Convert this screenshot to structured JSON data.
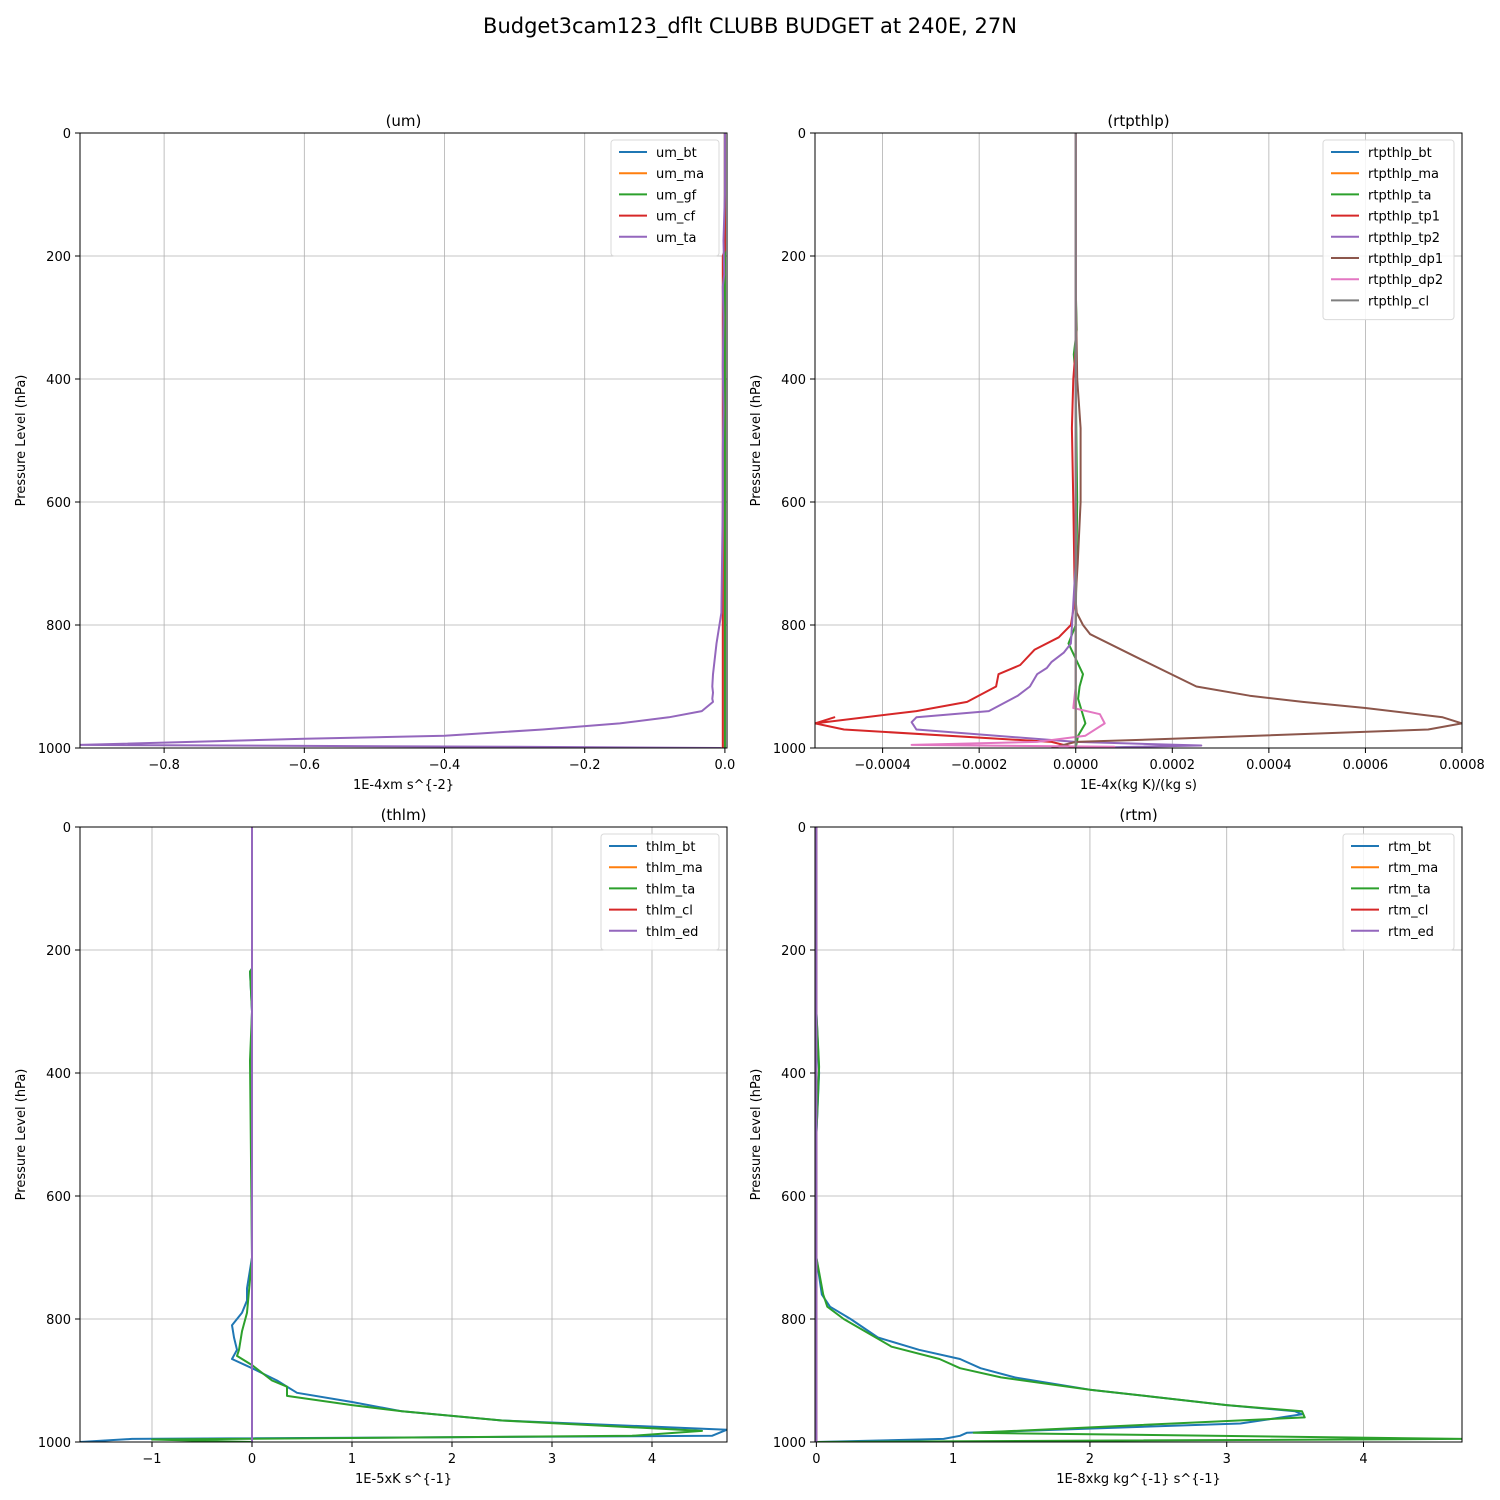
{
  "figure": {
    "suptitle": "Budget3cam123_dflt CLUBB BUDGET at 240E, 27N"
  },
  "chart_data": [
    {
      "type": "line",
      "title": "(um)",
      "xlabel": "1E-4xm s^{-2}",
      "ylabel": "Pressure Level (hPa)",
      "xlim": [
        -0.92,
        0.003
      ],
      "ylim": [
        1000,
        0
      ],
      "xticks": [
        -0.8,
        -0.6,
        -0.4,
        -0.2,
        0.0
      ],
      "xtick_labels": [
        "−0.8",
        "−0.6",
        "−0.4",
        "−0.2",
        "0.0"
      ],
      "yticks": [
        0,
        200,
        400,
        600,
        800,
        1000
      ],
      "ytick_labels": [
        "0",
        "200",
        "400",
        "600",
        "800",
        "1000"
      ],
      "grid": true,
      "legend": "top-right",
      "series": [
        {
          "name": "um_bt",
          "color": "#1f77b4",
          "x": [
            0,
            0,
            0,
            0,
            0
          ],
          "y": [
            0,
            250,
            500,
            800,
            1000
          ]
        },
        {
          "name": "um_ma",
          "color": "#ff7f0e",
          "x": [
            0,
            0,
            0,
            0
          ],
          "y": [
            0,
            400,
            800,
            1000
          ]
        },
        {
          "name": "um_gf",
          "color": "#2ca02c",
          "x": [
            0,
            0,
            0,
            0
          ],
          "y": [
            0,
            400,
            800,
            1000
          ]
        },
        {
          "name": "um_cf",
          "color": "#d62728",
          "x": [
            0,
            0,
            0,
            0,
            0.0,
            -0.003,
            -0.003
          ],
          "y": [
            0,
            160,
            170,
            180,
            190,
            200,
            1000
          ]
        },
        {
          "name": "um_ta",
          "color": "#9467bd",
          "x": [
            0.0,
            0.0,
            -0.002,
            -0.001,
            -0.003,
            -0.002,
            -0.003,
            -0.002,
            -0.003,
            -0.003,
            -0.005,
            -0.012,
            -0.017,
            -0.018,
            -0.017,
            -0.018,
            -0.017,
            -0.033,
            -0.08,
            -0.15,
            -0.26,
            -0.4,
            -0.6,
            -0.92,
            -0.3,
            -0.005
          ],
          "y": [
            0,
            100,
            175,
            230,
            250,
            300,
            380,
            450,
            520,
            600,
            780,
            830,
            880,
            900,
            910,
            920,
            925,
            940,
            950,
            960,
            970,
            980,
            985,
            995,
            998,
            1000
          ]
        }
      ]
    },
    {
      "type": "line",
      "title": "(rtpthlp)",
      "xlabel": "1E-4x(kg K)/(kg s)",
      "ylabel": "Pressure Level (hPa)",
      "xlim": [
        -0.00054,
        0.0008
      ],
      "ylim": [
        1000,
        0
      ],
      "xticks": [
        -0.0004,
        -0.0002,
        0.0,
        0.0002,
        0.0004,
        0.0006,
        0.0008
      ],
      "xtick_labels": [
        "−0.0004",
        "−0.0002",
        "0.0000",
        "0.0002",
        "0.0004",
        "0.0006",
        "0.0008"
      ],
      "yticks": [
        0,
        200,
        400,
        600,
        800,
        1000
      ],
      "ytick_labels": [
        "0",
        "200",
        "400",
        "600",
        "800",
        "1000"
      ],
      "grid": true,
      "legend": "top-right",
      "series": [
        {
          "name": "rtpthlp_bt",
          "color": "#1f77b4",
          "x": [
            0,
            0,
            0,
            0
          ],
          "y": [
            0,
            500,
            900,
            1000
          ]
        },
        {
          "name": "rtpthlp_ma",
          "color": "#ff7f0e",
          "x": [
            0,
            0,
            0,
            0
          ],
          "y": [
            0,
            500,
            900,
            1000
          ]
        },
        {
          "name": "rtpthlp_ta",
          "color": "#2ca02c",
          "x": [
            0.0,
            0.0,
            2e-06,
            -4e-06,
            0.0,
            3e-06,
            0.0,
            -1.5e-05,
            3e-06,
            1.5e-05,
            8e-06,
            5e-06,
            2e-05,
            5e-06,
            0.0
          ],
          "y": [
            0,
            250,
            320,
            360,
            400,
            600,
            800,
            830,
            860,
            880,
            900,
            920,
            960,
            980,
            1000
          ]
        },
        {
          "name": "rtpthlp_tp1",
          "color": "#d62728",
          "x": [
            0.0,
            0.0,
            -5e-06,
            -8e-06,
            -5e-06,
            -2e-06,
            -1e-05,
            -3.5e-05,
            -8.5e-05,
            -0.000115,
            -0.00016,
            -0.000165,
            -0.000225,
            -0.00033,
            -0.00054,
            -0.0005,
            -0.00054,
            -0.00048,
            -5e-05,
            0.0
          ],
          "y": [
            0,
            350,
            400,
            480,
            600,
            760,
            800,
            820,
            840,
            865,
            880,
            900,
            925,
            940,
            960,
            950,
            960,
            970,
            990,
            1000
          ]
        },
        {
          "name": "rtpthlp_tp2",
          "color": "#9467bd",
          "x": [
            0.0,
            0.0,
            -1e-05,
            -2.5e-05,
            -5e-05,
            -6e-05,
            -8e-05,
            -9.5e-05,
            -0.00012,
            -0.00018,
            -0.00033,
            -0.00034,
            -0.00033,
            0.0,
            0.00026,
            0.0
          ],
          "y": [
            0,
            700,
            830,
            845,
            860,
            870,
            880,
            900,
            915,
            940,
            950,
            958,
            970,
            990,
            996,
            1000
          ]
        },
        {
          "name": "rtpthlp_dp1",
          "color": "#8c564b",
          "x": [
            0.0,
            0.0,
            3e-06,
            1e-05,
            1e-05,
            4e-06,
            1e-06,
            0.0,
            2e-06,
            1.5e-05,
            3e-05,
            0.00012,
            0.00025,
            0.00036,
            0.00047,
            0.0006,
            0.00076,
            0.0008,
            0.00073,
            0.0002,
            0.0,
            -5e-05
          ],
          "y": [
            0,
            250,
            400,
            480,
            600,
            700,
            740,
            760,
            780,
            800,
            815,
            850,
            900,
            915,
            925,
            935,
            950,
            960,
            970,
            985,
            990,
            1000
          ]
        },
        {
          "name": "rtpthlp_dp2",
          "color": "#e377c2",
          "x": [
            0.0,
            0.0,
            -5e-06,
            5e-05,
            6e-05,
            2e-05,
            -8e-05,
            -0.00034,
            8e-05,
            0.0
          ],
          "y": [
            0,
            900,
            935,
            945,
            960,
            980,
            990,
            995,
            998,
            1000
          ]
        },
        {
          "name": "rtpthlp_cl",
          "color": "#7f7f7f",
          "x": [
            0,
            0
          ],
          "y": [
            0,
            1000
          ]
        }
      ]
    },
    {
      "type": "line",
      "title": "(thlm)",
      "xlabel": "1E-5xK s^{-1}",
      "ylabel": "Pressure Level (hPa)",
      "xlim": [
        -1.72,
        4.75
      ],
      "ylim": [
        1000,
        0
      ],
      "xticks": [
        -1,
        0,
        1,
        2,
        3,
        4
      ],
      "xtick_labels": [
        "−1",
        "0",
        "1",
        "2",
        "3",
        "4"
      ],
      "yticks": [
        0,
        200,
        400,
        600,
        800,
        1000
      ],
      "ytick_labels": [
        "0",
        "200",
        "400",
        "600",
        "800",
        "1000"
      ],
      "grid": true,
      "legend": "top-right",
      "series": [
        {
          "name": "thlm_bt",
          "color": "#1f77b4",
          "x": [
            0.0,
            0.0,
            -0.02,
            0.0,
            -0.01,
            0.0,
            -0.05,
            -0.05,
            -0.1,
            -0.2,
            -0.18,
            -0.15,
            -0.2,
            0.0,
            0.25,
            0.45,
            1.0,
            1.5,
            2.5,
            4.75,
            4.6,
            -1.2,
            -1.72
          ],
          "y": [
            0,
            230,
            235,
            300,
            380,
            700,
            750,
            770,
            790,
            810,
            830,
            850,
            865,
            880,
            900,
            920,
            935,
            950,
            965,
            980,
            990,
            995,
            1000
          ]
        },
        {
          "name": "thlm_ma",
          "color": "#ff7f0e",
          "x": [
            0,
            0,
            0
          ],
          "y": [
            0,
            500,
            1000
          ]
        },
        {
          "name": "thlm_ta",
          "color": "#2ca02c",
          "x": [
            0.0,
            0.0,
            -0.02,
            0.0,
            -0.02,
            0.0,
            -0.05,
            -0.1,
            -0.12,
            -0.13,
            -0.15,
            0.0,
            0.2,
            0.35,
            0.35,
            1.0,
            1.5,
            2.5,
            4.5,
            3.8,
            -1.0,
            0.0
          ],
          "y": [
            0,
            230,
            235,
            300,
            380,
            700,
            790,
            820,
            840,
            850,
            860,
            875,
            900,
            910,
            925,
            940,
            950,
            965,
            982,
            990,
            996,
            1000
          ]
        },
        {
          "name": "thlm_cl",
          "color": "#d62728",
          "x": [
            0,
            0,
            0
          ],
          "y": [
            0,
            500,
            1000
          ]
        },
        {
          "name": "thlm_ed",
          "color": "#9467bd",
          "x": [
            0,
            0,
            0
          ],
          "y": [
            0,
            500,
            1000
          ]
        }
      ]
    },
    {
      "type": "line",
      "title": "(rtm)",
      "xlabel": "1E-8xkg kg^{-1} s^{-1}",
      "ylabel": "Pressure Level (hPa)",
      "xlim": [
        -0.01,
        4.72
      ],
      "ylim": [
        1000,
        0
      ],
      "xticks": [
        0,
        1,
        2,
        3,
        4
      ],
      "xtick_labels": [
        "0",
        "1",
        "2",
        "3",
        "4"
      ],
      "yticks": [
        0,
        200,
        400,
        600,
        800,
        1000
      ],
      "ytick_labels": [
        "0",
        "200",
        "400",
        "600",
        "800",
        "1000"
      ],
      "grid": true,
      "legend": "top-right",
      "series": [
        {
          "name": "rtm_bt",
          "color": "#1f77b4",
          "x": [
            0.0,
            0.0,
            0.02,
            0.0,
            0.0,
            0.04,
            0.1,
            0.25,
            0.45,
            0.75,
            1.05,
            1.2,
            1.45,
            2.0,
            3.0,
            3.5,
            3.55,
            3.1,
            1.1,
            1.05,
            0.93,
            0.0
          ],
          "y": [
            0,
            300,
            400,
            500,
            700,
            760,
            780,
            800,
            830,
            850,
            865,
            880,
            895,
            915,
            940,
            950,
            955,
            970,
            985,
            990,
            995,
            1000
          ]
        },
        {
          "name": "rtm_ma",
          "color": "#ff7f0e",
          "x": [
            0,
            0,
            0
          ],
          "y": [
            0,
            500,
            1000
          ]
        },
        {
          "name": "rtm_ta",
          "color": "#2ca02c",
          "x": [
            0.0,
            0.0,
            0.02,
            0.0,
            0.0,
            0.05,
            0.08,
            0.2,
            0.55,
            0.9,
            1.05,
            1.35,
            2.0,
            3.0,
            3.55,
            3.57,
            1.15,
            4.72,
            0.0
          ],
          "y": [
            0,
            300,
            390,
            500,
            700,
            760,
            780,
            800,
            845,
            865,
            880,
            895,
            915,
            940,
            950,
            960,
            985,
            995,
            1000
          ]
        },
        {
          "name": "rtm_cl",
          "color": "#d62728",
          "x": [
            0,
            0,
            0
          ],
          "y": [
            0,
            500,
            1000
          ]
        },
        {
          "name": "rtm_ed",
          "color": "#9467bd",
          "x": [
            0,
            0,
            0
          ],
          "y": [
            0,
            500,
            1000
          ]
        }
      ]
    }
  ]
}
